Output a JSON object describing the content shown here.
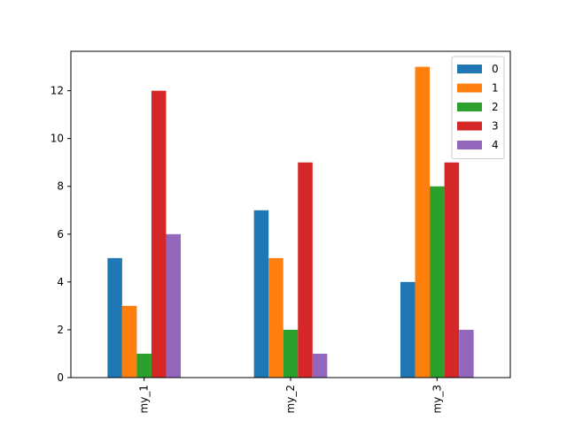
{
  "chart_data": {
    "type": "bar",
    "categories": [
      "my_1",
      "my_2",
      "my_3"
    ],
    "series": [
      {
        "name": "0",
        "values": [
          5,
          7,
          4
        ],
        "color": "#1f77b4"
      },
      {
        "name": "1",
        "values": [
          3,
          5,
          13
        ],
        "color": "#ff7f0e"
      },
      {
        "name": "2",
        "values": [
          1,
          2,
          8
        ],
        "color": "#2ca02c"
      },
      {
        "name": "3",
        "values": [
          12,
          9,
          9
        ],
        "color": "#d62728"
      },
      {
        "name": "4",
        "values": [
          6,
          1,
          2
        ],
        "color": "#9467bd"
      }
    ],
    "title": "",
    "xlabel": "",
    "ylabel": "",
    "ylim": [
      0,
      13.65
    ],
    "yticks": [
      0,
      2,
      4,
      6,
      8,
      10,
      12
    ],
    "grid": false,
    "legend_position": "top-right",
    "xtick_rotation": "vertical"
  }
}
